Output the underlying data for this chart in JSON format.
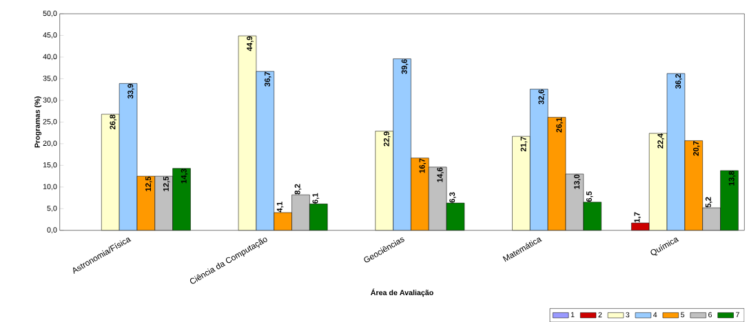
{
  "chart_data": {
    "type": "bar",
    "xlabel": "Área de Avaliação",
    "ylabel": "Programas (%)",
    "categories": [
      "Astronomia/Física",
      "Ciência da Computação",
      "Geociências",
      "Matemática",
      "Química"
    ],
    "ylim": [
      0,
      50
    ],
    "yticks": [
      {
        "value": 0,
        "label": "0,0"
      },
      {
        "value": 5,
        "label": "5,0"
      },
      {
        "value": 10,
        "label": "10,0"
      },
      {
        "value": 15,
        "label": "15,0"
      },
      {
        "value": 20,
        "label": "20,0"
      },
      {
        "value": 25,
        "label": "25,0"
      },
      {
        "value": 30,
        "label": "30,0"
      },
      {
        "value": 35,
        "label": "35,0"
      },
      {
        "value": 40,
        "label": "40,0"
      },
      {
        "value": 45,
        "label": "45,0"
      },
      {
        "value": 50,
        "label": "50,0"
      }
    ],
    "legend": "bottom right",
    "grid": false,
    "series": [
      {
        "name": "1",
        "color": "#9999ff",
        "values": [
          null,
          null,
          null,
          null,
          null
        ]
      },
      {
        "name": "2",
        "color": "#cc0000",
        "values": [
          null,
          null,
          null,
          null,
          1.7
        ],
        "value_labels": [
          null,
          null,
          null,
          null,
          "1,7"
        ]
      },
      {
        "name": "3",
        "color": "#ffffcc",
        "values": [
          26.8,
          44.9,
          22.9,
          21.7,
          22.4
        ],
        "value_labels": [
          "26,8",
          "44,9",
          "22,9",
          "21,7",
          "22,4"
        ]
      },
      {
        "name": "4",
        "color": "#99ccff",
        "values": [
          33.9,
          36.7,
          39.6,
          32.6,
          36.2
        ],
        "value_labels": [
          "33,9",
          "36,7",
          "39,6",
          "32,6",
          "36,2"
        ]
      },
      {
        "name": "5",
        "color": "#ff9900",
        "values": [
          12.5,
          4.1,
          16.7,
          26.1,
          20.7
        ],
        "value_labels": [
          "12,5",
          "4,1",
          "16,7",
          "26,1",
          "20,7"
        ]
      },
      {
        "name": "6",
        "color": "#c0c0c0",
        "values": [
          12.5,
          8.2,
          14.6,
          13.0,
          5.2
        ],
        "value_labels": [
          "12,5",
          "8,2",
          "14,6",
          "13,0",
          "5,2"
        ]
      },
      {
        "name": "7",
        "color": "#008000",
        "values": [
          14.3,
          6.1,
          6.3,
          6.5,
          13.8
        ],
        "value_labels": [
          "14,3",
          "6,1",
          "6,3",
          "6,5",
          "13,8"
        ]
      }
    ]
  }
}
